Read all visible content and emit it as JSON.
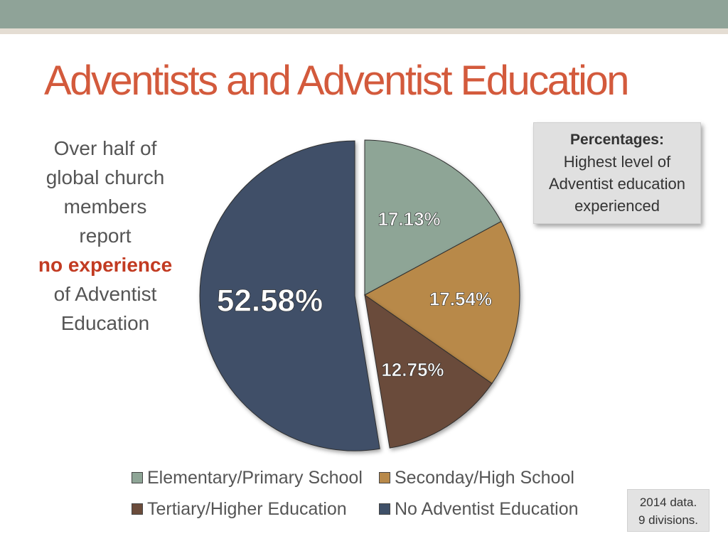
{
  "slide": {
    "title": "Adventists and Adventist Education"
  },
  "side_text": {
    "line1": "Over half of",
    "line2": "global church",
    "line3": "members",
    "line4": "report",
    "emphasis": "no experience",
    "line5": "of Adventist",
    "line6": "Education"
  },
  "info_box": {
    "heading": "Percentages:",
    "line1": "Highest level of",
    "line2": "Adventist education",
    "line3": "experienced"
  },
  "note": {
    "line1": "2014 data.",
    "line2": "9 divisions."
  },
  "chart_data": {
    "type": "pie",
    "categories": [
      "Elementary/Primary School",
      "Seconday/High School",
      "Tertiary/Higher Education",
      "No Adventist Education"
    ],
    "values": [
      17.13,
      17.54,
      12.75,
      52.58
    ],
    "data_labels": [
      "17.13%",
      "17.54%",
      "12.75%",
      "52.58%"
    ],
    "colors": [
      "#8ea596",
      "#b8894a",
      "#6b4c3b",
      "#3f5068"
    ],
    "exploded_slice": "No Adventist Education",
    "legend_placement": "bottom",
    "title": ""
  }
}
